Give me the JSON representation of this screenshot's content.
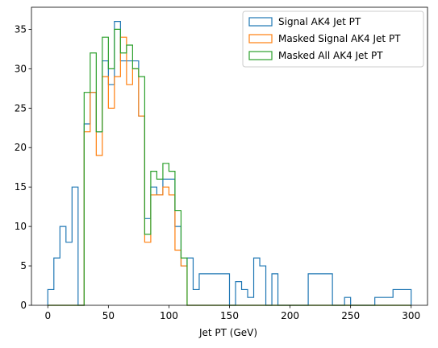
{
  "chart_data": {
    "type": "histogram",
    "histtype": "step",
    "title": "",
    "xlabel": "Jet PT (GeV)",
    "ylabel": "",
    "xlim": [
      -13.5,
      313.5
    ],
    "ylim": [
      0,
      37.8
    ],
    "xticks": [
      0,
      50,
      100,
      150,
      200,
      250,
      300
    ],
    "yticks": [
      0,
      5,
      10,
      15,
      20,
      25,
      30,
      35
    ],
    "grid": false,
    "legend_position": "top-right",
    "bin_edges": [
      0,
      5,
      10,
      15,
      20,
      25,
      30,
      35,
      40,
      45,
      50,
      55,
      60,
      65,
      70,
      75,
      80,
      85,
      90,
      95,
      100,
      105,
      110,
      115,
      120,
      125,
      130,
      135,
      140,
      145,
      150,
      155,
      160,
      165,
      170,
      175,
      180,
      185,
      190,
      195,
      200,
      205,
      210,
      215,
      220,
      225,
      230,
      235,
      240,
      245,
      250,
      255,
      260,
      265,
      270,
      275,
      280,
      285,
      290,
      295,
      300
    ],
    "series": [
      {
        "name": "Signal AK4 Jet PT",
        "color": "#1f77b4",
        "counts": [
          2,
          6,
          10,
          8,
          15,
          0,
          23,
          27,
          22,
          31,
          28,
          36,
          31,
          31,
          31,
          24,
          11,
          15,
          14,
          16,
          16,
          10,
          5,
          6,
          2,
          4,
          4,
          4,
          4,
          4,
          0,
          3,
          2,
          1,
          6,
          5,
          0,
          4,
          0,
          0,
          0,
          0,
          0,
          4,
          4,
          4,
          4,
          0,
          0,
          1,
          0,
          0,
          0,
          0,
          1,
          1,
          1,
          2,
          2,
          2
        ]
      },
      {
        "name": "Masked Signal AK4 Jet PT",
        "color": "#ff7f0e",
        "counts": [
          0,
          0,
          0,
          0,
          0,
          0,
          22,
          27,
          19,
          29,
          25,
          29,
          34,
          28,
          30,
          24,
          8,
          14,
          14,
          15,
          14,
          7,
          5,
          0,
          0,
          0,
          0,
          0,
          0,
          0,
          0,
          0,
          0,
          0,
          0,
          0,
          0,
          0,
          0,
          0,
          0,
          0,
          0,
          0,
          0,
          0,
          0,
          0,
          0,
          0,
          0,
          0,
          0,
          0,
          0,
          0,
          0,
          0,
          0,
          0
        ]
      },
      {
        "name": "Masked All AK4 Jet PT",
        "color": "#2ca02c",
        "counts": [
          0,
          0,
          0,
          0,
          0,
          0,
          27,
          32,
          22,
          34,
          30,
          35,
          32,
          33,
          30,
          29,
          9,
          17,
          16,
          18,
          17,
          12,
          6,
          0,
          0,
          0,
          0,
          0,
          0,
          0,
          0,
          0,
          0,
          0,
          0,
          0,
          0,
          0,
          0,
          0,
          0,
          0,
          0,
          0,
          0,
          0,
          0,
          0,
          0,
          0,
          0,
          0,
          0,
          0,
          0,
          0,
          0,
          0,
          0,
          0
        ]
      }
    ]
  }
}
